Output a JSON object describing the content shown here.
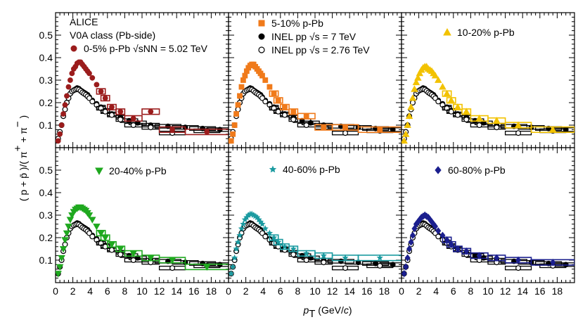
{
  "figure": {
    "ylabel_text": "( p + p̄ )/( π⁺ + π⁻ )",
    "xlabel_text": "pT (GeV/c)"
  },
  "header_text": {
    "experiment": "ALICE",
    "v0a_class": "V0A class (Pb-side)",
    "energy_pPb": "√sNN = 5.02 TeV",
    "inel_7": "INEL pp √s = 7 TeV",
    "inel_276": "INEL pp √s = 2.76 TeV"
  },
  "colors": {
    "0-5%": "#9b1c1c",
    "5-10%": "#f07a1a",
    "10-20%": "#f2c200",
    "20-40%": "#1fa81f",
    "40-60%": "#1a9aa0",
    "60-80%": "#1b1f8e",
    "pp": "#000000"
  },
  "chart_data": {
    "type": "scatter",
    "panels": 6,
    "xlim": [
      0,
      20
    ],
    "ylim": [
      0,
      0.6
    ],
    "x_ticks": [
      0,
      2,
      4,
      6,
      8,
      10,
      12,
      14,
      16,
      18
    ],
    "y_ticks": [
      0.1,
      0.2,
      0.3,
      0.4,
      0.5
    ],
    "reference": [
      {
        "name": "INEL pp √s = 7 TeV",
        "marker": "filled-circle",
        "x": [
          0.3,
          0.5,
          0.7,
          0.9,
          1.1,
          1.3,
          1.5,
          1.7,
          1.9,
          2.1,
          2.3,
          2.5,
          2.7,
          2.9,
          3.1,
          3.3,
          3.5,
          3.7,
          3.9,
          4.25,
          4.75,
          5.25,
          5.75,
          6.5,
          7.5,
          8.5,
          9.5,
          11,
          13,
          15,
          17,
          19
        ],
        "y": [
          0.04,
          0.07,
          0.1,
          0.14,
          0.17,
          0.2,
          0.22,
          0.24,
          0.25,
          0.255,
          0.26,
          0.265,
          0.262,
          0.255,
          0.25,
          0.245,
          0.24,
          0.235,
          0.225,
          0.21,
          0.195,
          0.18,
          0.165,
          0.15,
          0.135,
          0.12,
          0.11,
          0.1,
          0.095,
          0.09,
          0.085,
          0.08
        ]
      },
      {
        "name": "INEL pp √s = 2.76 TeV",
        "marker": "open-circle",
        "x": [
          0.3,
          0.5,
          0.7,
          0.9,
          1.1,
          1.3,
          1.5,
          1.7,
          1.9,
          2.1,
          2.3,
          2.5,
          2.7,
          2.9,
          3.1,
          3.3,
          3.5,
          3.7,
          3.9,
          4.25,
          4.75,
          5.25,
          5.75,
          6.5,
          7.5,
          9,
          11,
          13.5,
          17.5
        ],
        "y": [
          0.04,
          0.07,
          0.1,
          0.14,
          0.17,
          0.2,
          0.22,
          0.24,
          0.25,
          0.255,
          0.258,
          0.26,
          0.258,
          0.252,
          0.245,
          0.24,
          0.235,
          0.228,
          0.22,
          0.205,
          0.19,
          0.175,
          0.16,
          0.145,
          0.125,
          0.1,
          0.09,
          0.065,
          0.075
        ]
      }
    ],
    "series": [
      {
        "name": "0-5% p-Pb",
        "marker": "circle",
        "x": [
          0.3,
          0.5,
          0.7,
          0.9,
          1.1,
          1.3,
          1.5,
          1.7,
          1.9,
          2.1,
          2.3,
          2.5,
          2.7,
          2.9,
          3.1,
          3.3,
          3.5,
          3.7,
          3.9,
          4.25,
          4.75,
          5.25,
          5.75,
          6.5,
          7.5,
          9,
          11,
          13.5,
          17.5
        ],
        "y": [
          0.03,
          0.06,
          0.1,
          0.15,
          0.19,
          0.23,
          0.27,
          0.3,
          0.33,
          0.35,
          0.36,
          0.375,
          0.38,
          0.38,
          0.37,
          0.36,
          0.35,
          0.34,
          0.33,
          0.31,
          0.28,
          0.25,
          0.22,
          0.18,
          0.16,
          0.13,
          0.16,
          0.08,
          0.07
        ]
      },
      {
        "name": "5-10% p-Pb",
        "marker": "square",
        "x": [
          0.3,
          0.5,
          0.7,
          0.9,
          1.1,
          1.3,
          1.5,
          1.7,
          1.9,
          2.1,
          2.3,
          2.5,
          2.7,
          2.9,
          3.1,
          3.3,
          3.5,
          3.7,
          3.9,
          4.25,
          4.75,
          5.25,
          5.75,
          6.5,
          7.5,
          9,
          11,
          13.5,
          17.5
        ],
        "y": [
          0.03,
          0.06,
          0.1,
          0.15,
          0.19,
          0.23,
          0.27,
          0.3,
          0.32,
          0.34,
          0.355,
          0.365,
          0.37,
          0.37,
          0.36,
          0.35,
          0.34,
          0.33,
          0.32,
          0.3,
          0.27,
          0.24,
          0.21,
          0.18,
          0.16,
          0.14,
          0.09,
          0.09,
          0.08
        ]
      },
      {
        "name": "10-20% p-Pb",
        "marker": "triangle-up",
        "x": [
          0.3,
          0.5,
          0.7,
          0.9,
          1.1,
          1.3,
          1.5,
          1.7,
          1.9,
          2.1,
          2.3,
          2.5,
          2.7,
          2.9,
          3.1,
          3.3,
          3.5,
          3.7,
          3.9,
          4.25,
          4.75,
          5.25,
          5.75,
          6.5,
          7.5,
          9,
          11,
          13.5,
          17.5
        ],
        "y": [
          0.03,
          0.06,
          0.1,
          0.14,
          0.18,
          0.22,
          0.26,
          0.29,
          0.31,
          0.33,
          0.345,
          0.355,
          0.36,
          0.36,
          0.35,
          0.345,
          0.34,
          0.33,
          0.32,
          0.3,
          0.27,
          0.24,
          0.21,
          0.18,
          0.16,
          0.13,
          0.12,
          0.1,
          0.08
        ]
      },
      {
        "name": "20-40% p-Pb",
        "marker": "triangle-down",
        "x": [
          0.3,
          0.5,
          0.7,
          0.9,
          1.1,
          1.3,
          1.5,
          1.7,
          1.9,
          2.1,
          2.3,
          2.5,
          2.7,
          2.9,
          3.1,
          3.3,
          3.5,
          3.7,
          3.9,
          4.25,
          4.75,
          5.25,
          5.75,
          6.5,
          7.5,
          9,
          11,
          13.5,
          17.5
        ],
        "y": [
          0.04,
          0.07,
          0.11,
          0.15,
          0.19,
          0.22,
          0.25,
          0.28,
          0.3,
          0.315,
          0.325,
          0.33,
          0.335,
          0.335,
          0.33,
          0.325,
          0.32,
          0.31,
          0.3,
          0.28,
          0.25,
          0.22,
          0.2,
          0.17,
          0.15,
          0.13,
          0.11,
          0.1,
          0.07
        ]
      },
      {
        "name": "40-60% p-Pb",
        "marker": "star",
        "x": [
          0.3,
          0.5,
          0.7,
          0.9,
          1.1,
          1.3,
          1.5,
          1.7,
          1.9,
          2.1,
          2.3,
          2.5,
          2.7,
          2.9,
          3.1,
          3.3,
          3.5,
          3.7,
          3.9,
          4.25,
          4.75,
          5.25,
          5.75,
          6.5,
          7.5,
          9,
          11,
          13.5,
          17.5
        ],
        "y": [
          0.04,
          0.07,
          0.11,
          0.15,
          0.18,
          0.21,
          0.24,
          0.26,
          0.28,
          0.29,
          0.3,
          0.305,
          0.305,
          0.3,
          0.295,
          0.29,
          0.28,
          0.27,
          0.26,
          0.24,
          0.22,
          0.2,
          0.18,
          0.16,
          0.15,
          0.13,
          0.12,
          0.11,
          0.11
        ]
      },
      {
        "name": "60-80% p-Pb",
        "marker": "diamond",
        "x": [
          0.3,
          0.5,
          0.7,
          0.9,
          1.1,
          1.3,
          1.5,
          1.7,
          1.9,
          2.1,
          2.3,
          2.5,
          2.7,
          2.9,
          3.1,
          3.3,
          3.5,
          3.7,
          3.9,
          4.25,
          4.75,
          5.25,
          5.75,
          6.5,
          7.5,
          9,
          11,
          13.5,
          17.5
        ],
        "y": [
          0.04,
          0.07,
          0.11,
          0.15,
          0.18,
          0.21,
          0.24,
          0.26,
          0.27,
          0.28,
          0.29,
          0.295,
          0.3,
          0.295,
          0.29,
          0.28,
          0.27,
          0.26,
          0.25,
          0.23,
          0.21,
          0.19,
          0.17,
          0.15,
          0.14,
          0.12,
          0.11,
          0.1,
          0.09
        ]
      }
    ]
  }
}
